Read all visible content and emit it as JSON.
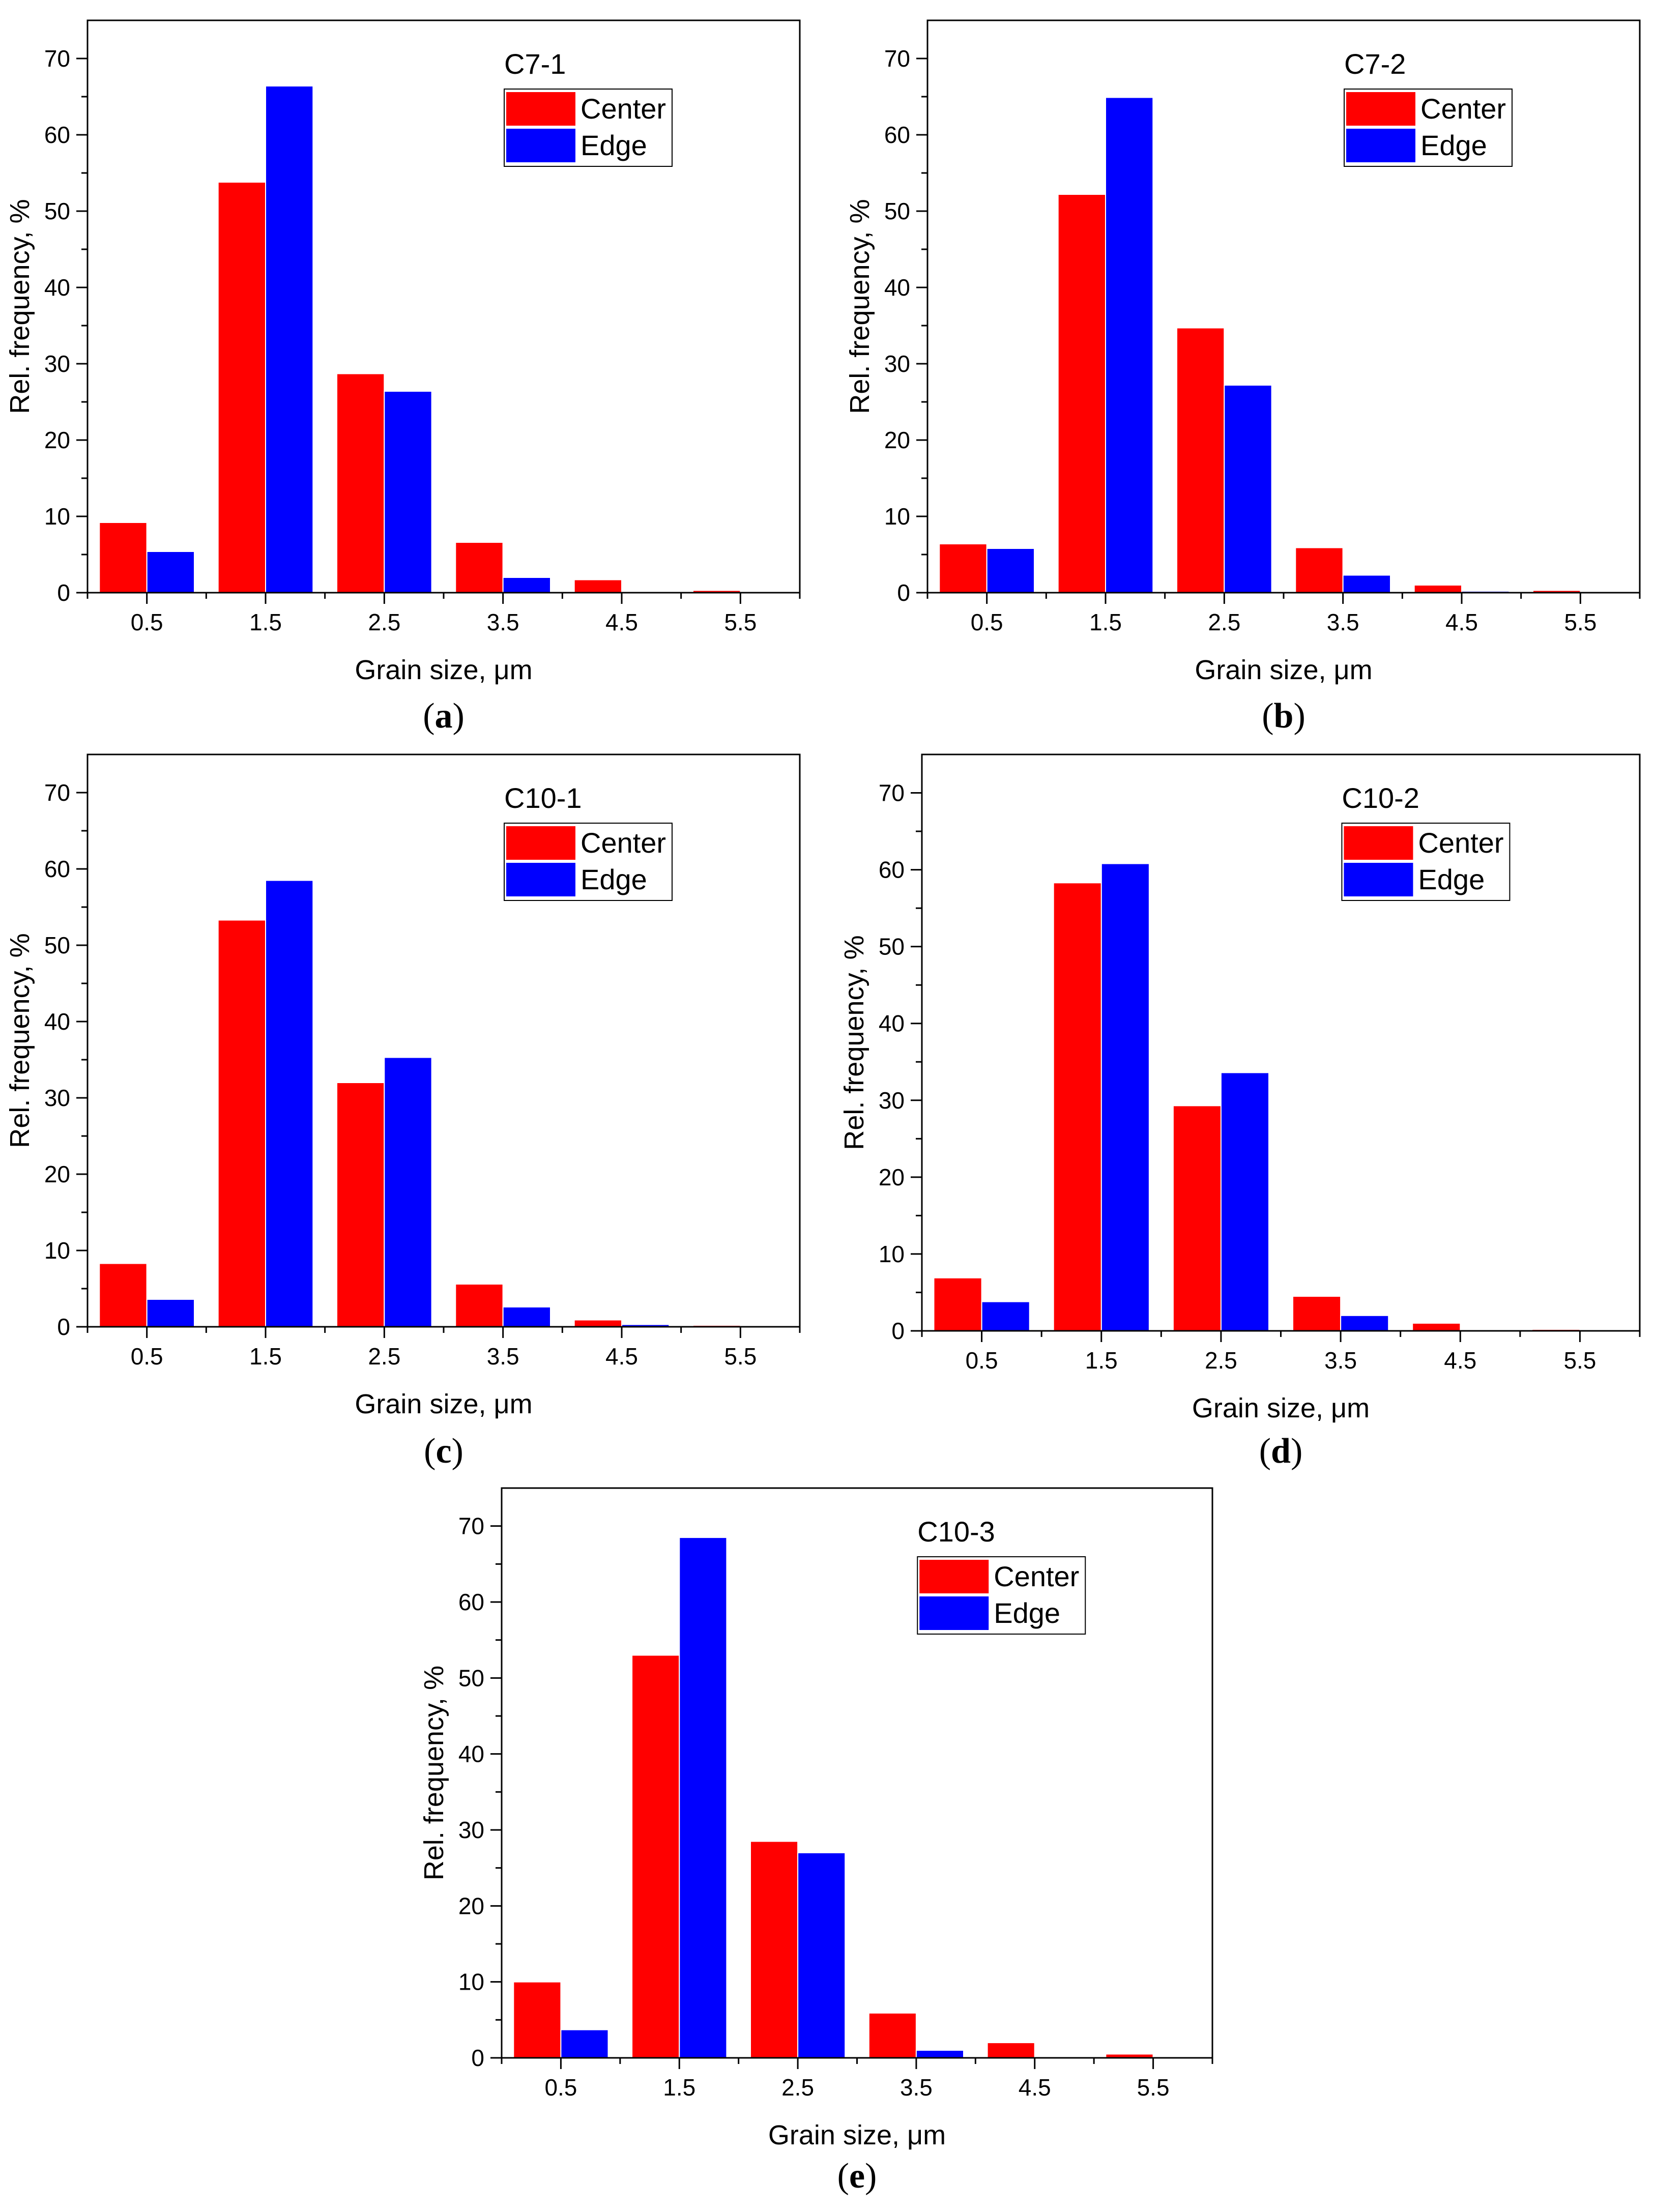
{
  "colors": {
    "Center": "#ff0000",
    "Edge": "#0000ff"
  },
  "chart_data": [
    {
      "type": "bar",
      "panel_label": "C7-1",
      "caption": "a",
      "categories": [
        "0.5",
        "1.5",
        "2.5",
        "3.5",
        "4.5",
        "5.5"
      ],
      "series": [
        {
          "name": "Center",
          "values": [
            9.2,
            53.8,
            28.7,
            6.6,
            1.7,
            0.3
          ]
        },
        {
          "name": "Edge",
          "values": [
            5.4,
            66.4,
            26.4,
            2.0,
            0,
            0
          ]
        }
      ],
      "xlabel": "Grain size, μm",
      "ylabel": "Rel. frequency, %",
      "ylim": [
        0,
        75
      ],
      "yticks": [
        0,
        10,
        20,
        30,
        40,
        50,
        60,
        70
      ],
      "legend": "top-right"
    },
    {
      "type": "bar",
      "panel_label": "C7-2",
      "caption": "b",
      "categories": [
        "0.5",
        "1.5",
        "2.5",
        "3.5",
        "4.5",
        "5.5"
      ],
      "series": [
        {
          "name": "Center",
          "values": [
            6.4,
            52.2,
            34.7,
            5.9,
            1.0,
            0.3
          ]
        },
        {
          "name": "Edge",
          "values": [
            5.8,
            64.9,
            27.2,
            2.3,
            0.2,
            0
          ]
        }
      ],
      "xlabel": "Grain size, μm",
      "ylabel": "Rel. frequency, %",
      "ylim": [
        0,
        75
      ],
      "yticks": [
        0,
        10,
        20,
        30,
        40,
        50,
        60,
        70
      ],
      "legend": "top-right"
    },
    {
      "type": "bar",
      "panel_label": "C10-1",
      "caption": "c",
      "categories": [
        "0.5",
        "1.5",
        "2.5",
        "3.5",
        "4.5",
        "5.5"
      ],
      "series": [
        {
          "name": "Center",
          "values": [
            8.3,
            53.3,
            32.0,
            5.6,
            0.9,
            0.2
          ]
        },
        {
          "name": "Edge",
          "values": [
            3.6,
            58.5,
            35.3,
            2.6,
            0.3,
            0
          ]
        }
      ],
      "xlabel": "Grain size, μm",
      "ylabel": "Rel. frequency, %",
      "ylim": [
        0,
        75
      ],
      "yticks": [
        0,
        10,
        20,
        30,
        40,
        50,
        60,
        70
      ],
      "legend": "top-right"
    },
    {
      "type": "bar",
      "panel_label": "C10-2",
      "caption": "d",
      "categories": [
        "0.5",
        "1.5",
        "2.5",
        "3.5",
        "4.5",
        "5.5"
      ],
      "series": [
        {
          "name": "Center",
          "values": [
            6.9,
            58.3,
            29.3,
            4.5,
            1.0,
            0.2
          ]
        },
        {
          "name": "Edge",
          "values": [
            3.8,
            60.8,
            33.6,
            2.0,
            0.1,
            0
          ]
        }
      ],
      "xlabel": "Grain size, μm",
      "ylabel": "Rel. frequency, %",
      "ylim": [
        0,
        75
      ],
      "yticks": [
        0,
        10,
        20,
        30,
        40,
        50,
        60,
        70
      ],
      "legend": "top-right"
    },
    {
      "type": "bar",
      "panel_label": "C10-3",
      "caption": "e",
      "categories": [
        "0.5",
        "1.5",
        "2.5",
        "3.5",
        "4.5",
        "5.5"
      ],
      "series": [
        {
          "name": "Center",
          "values": [
            10.0,
            53.0,
            28.5,
            5.9,
            2.0,
            0.5
          ]
        },
        {
          "name": "Edge",
          "values": [
            3.7,
            68.5,
            27.0,
            1.0,
            0,
            0
          ]
        }
      ],
      "xlabel": "Grain size, μm",
      "ylabel": "Rel. frequency, %",
      "ylim": [
        0,
        75
      ],
      "yticks": [
        0,
        10,
        20,
        30,
        40,
        50,
        60,
        70
      ],
      "legend": "top-right"
    }
  ]
}
